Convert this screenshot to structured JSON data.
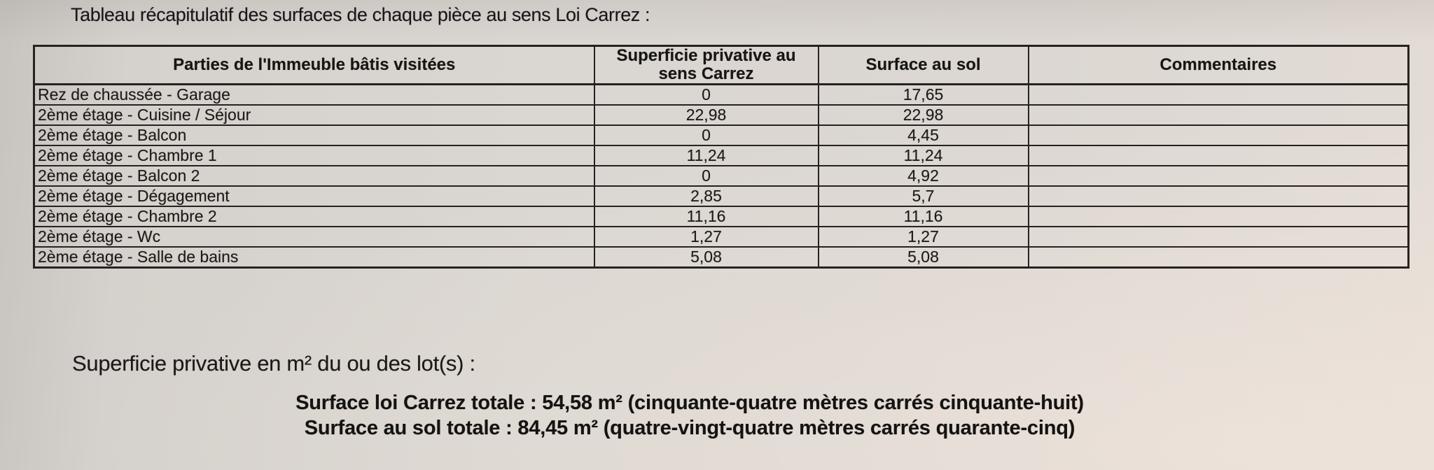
{
  "page": {
    "title": "Tableau récapitulatif des surfaces de chaque pièce au sens Loi Carrez :"
  },
  "table": {
    "headers": [
      "Parties de l'Immeuble bâtis visitées",
      "Superficie privative au sens Carrez",
      "Surface au sol",
      "Commentaires"
    ],
    "rows": [
      {
        "piece": "Rez de chaussée - Garage",
        "carrez": "0",
        "sol": "17,65",
        "commentaire": ""
      },
      {
        "piece": "2ème étage - Cuisine / Séjour",
        "carrez": "22,98",
        "sol": "22,98",
        "commentaire": ""
      },
      {
        "piece": "2ème étage - Balcon",
        "carrez": "0",
        "sol": "4,45",
        "commentaire": ""
      },
      {
        "piece": "2ème étage - Chambre 1",
        "carrez": "11,24",
        "sol": "11,24",
        "commentaire": ""
      },
      {
        "piece": "2ème étage - Balcon 2",
        "carrez": "0",
        "sol": "4,92",
        "commentaire": ""
      },
      {
        "piece": "2ème étage - Dégagement",
        "carrez": "2,85",
        "sol": "5,7",
        "commentaire": ""
      },
      {
        "piece": "2ème étage - Chambre 2",
        "carrez": "11,16",
        "sol": "11,16",
        "commentaire": ""
      },
      {
        "piece": "2ème étage - Wc",
        "carrez": "1,27",
        "sol": "1,27",
        "commentaire": ""
      },
      {
        "piece": "2ème étage - Salle de bains",
        "carrez": "5,08",
        "sol": "5,08",
        "commentaire": ""
      }
    ]
  },
  "summary": {
    "intro": "Superficie privative en m² du ou des lot(s) :",
    "carrez_total": "Surface loi Carrez totale : 54,58 m² (cinquante-quatre mètres carrés cinquante-huit)",
    "sol_total": "Surface au sol totale : 84,45 m² (quatre-vingt-quatre mètres carrés quarante-cinq)"
  }
}
